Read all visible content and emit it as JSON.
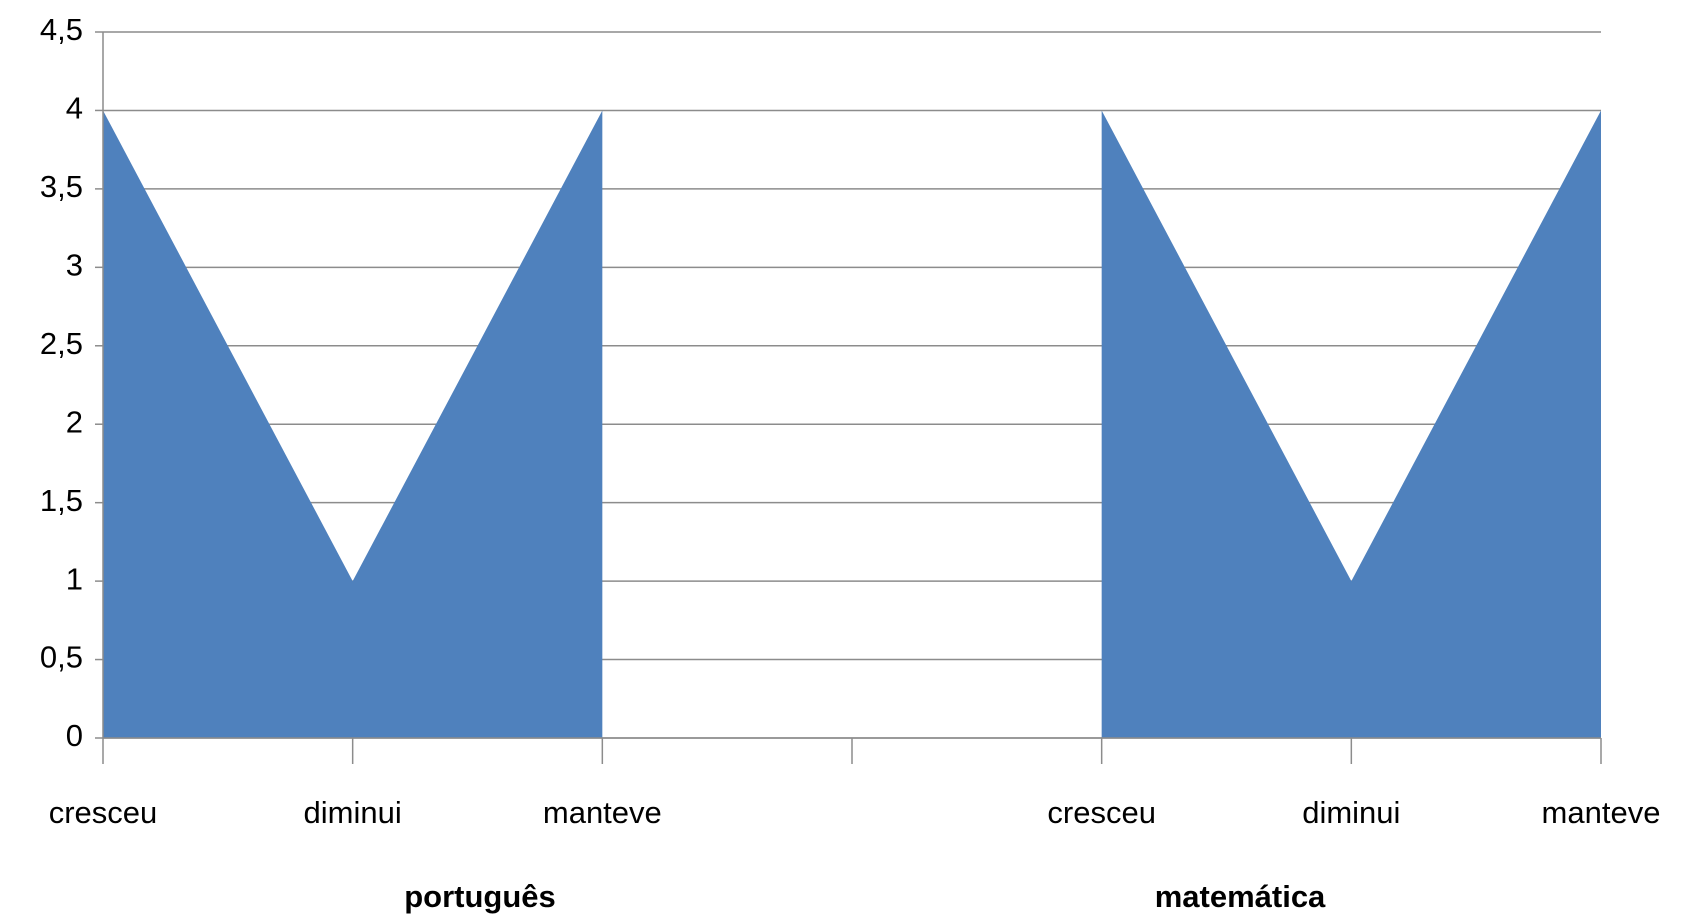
{
  "chart_data": {
    "type": "area",
    "categories": [
      "cresceu",
      "diminui",
      "manteve",
      null,
      "cresceu",
      "diminui",
      "manteve"
    ],
    "values": [
      4,
      1,
      4,
      null,
      4,
      1,
      4
    ],
    "color": "#4f81bd",
    "group_labels": [
      "português",
      "matemática"
    ],
    "group_label_color": "#ff0000",
    "ylim": [
      0,
      4.5
    ],
    "yticks": [
      0,
      {
        "value": 0.5,
        "label": "0,5"
      },
      1,
      {
        "value": 1.5,
        "label": "1,5"
      },
      2,
      {
        "value": 2.5,
        "label": "2,5"
      },
      3,
      {
        "value": 3.5,
        "label": "3,5"
      },
      4,
      {
        "value": 4.5,
        "label": "4,5"
      }
    ],
    "grid": true
  }
}
